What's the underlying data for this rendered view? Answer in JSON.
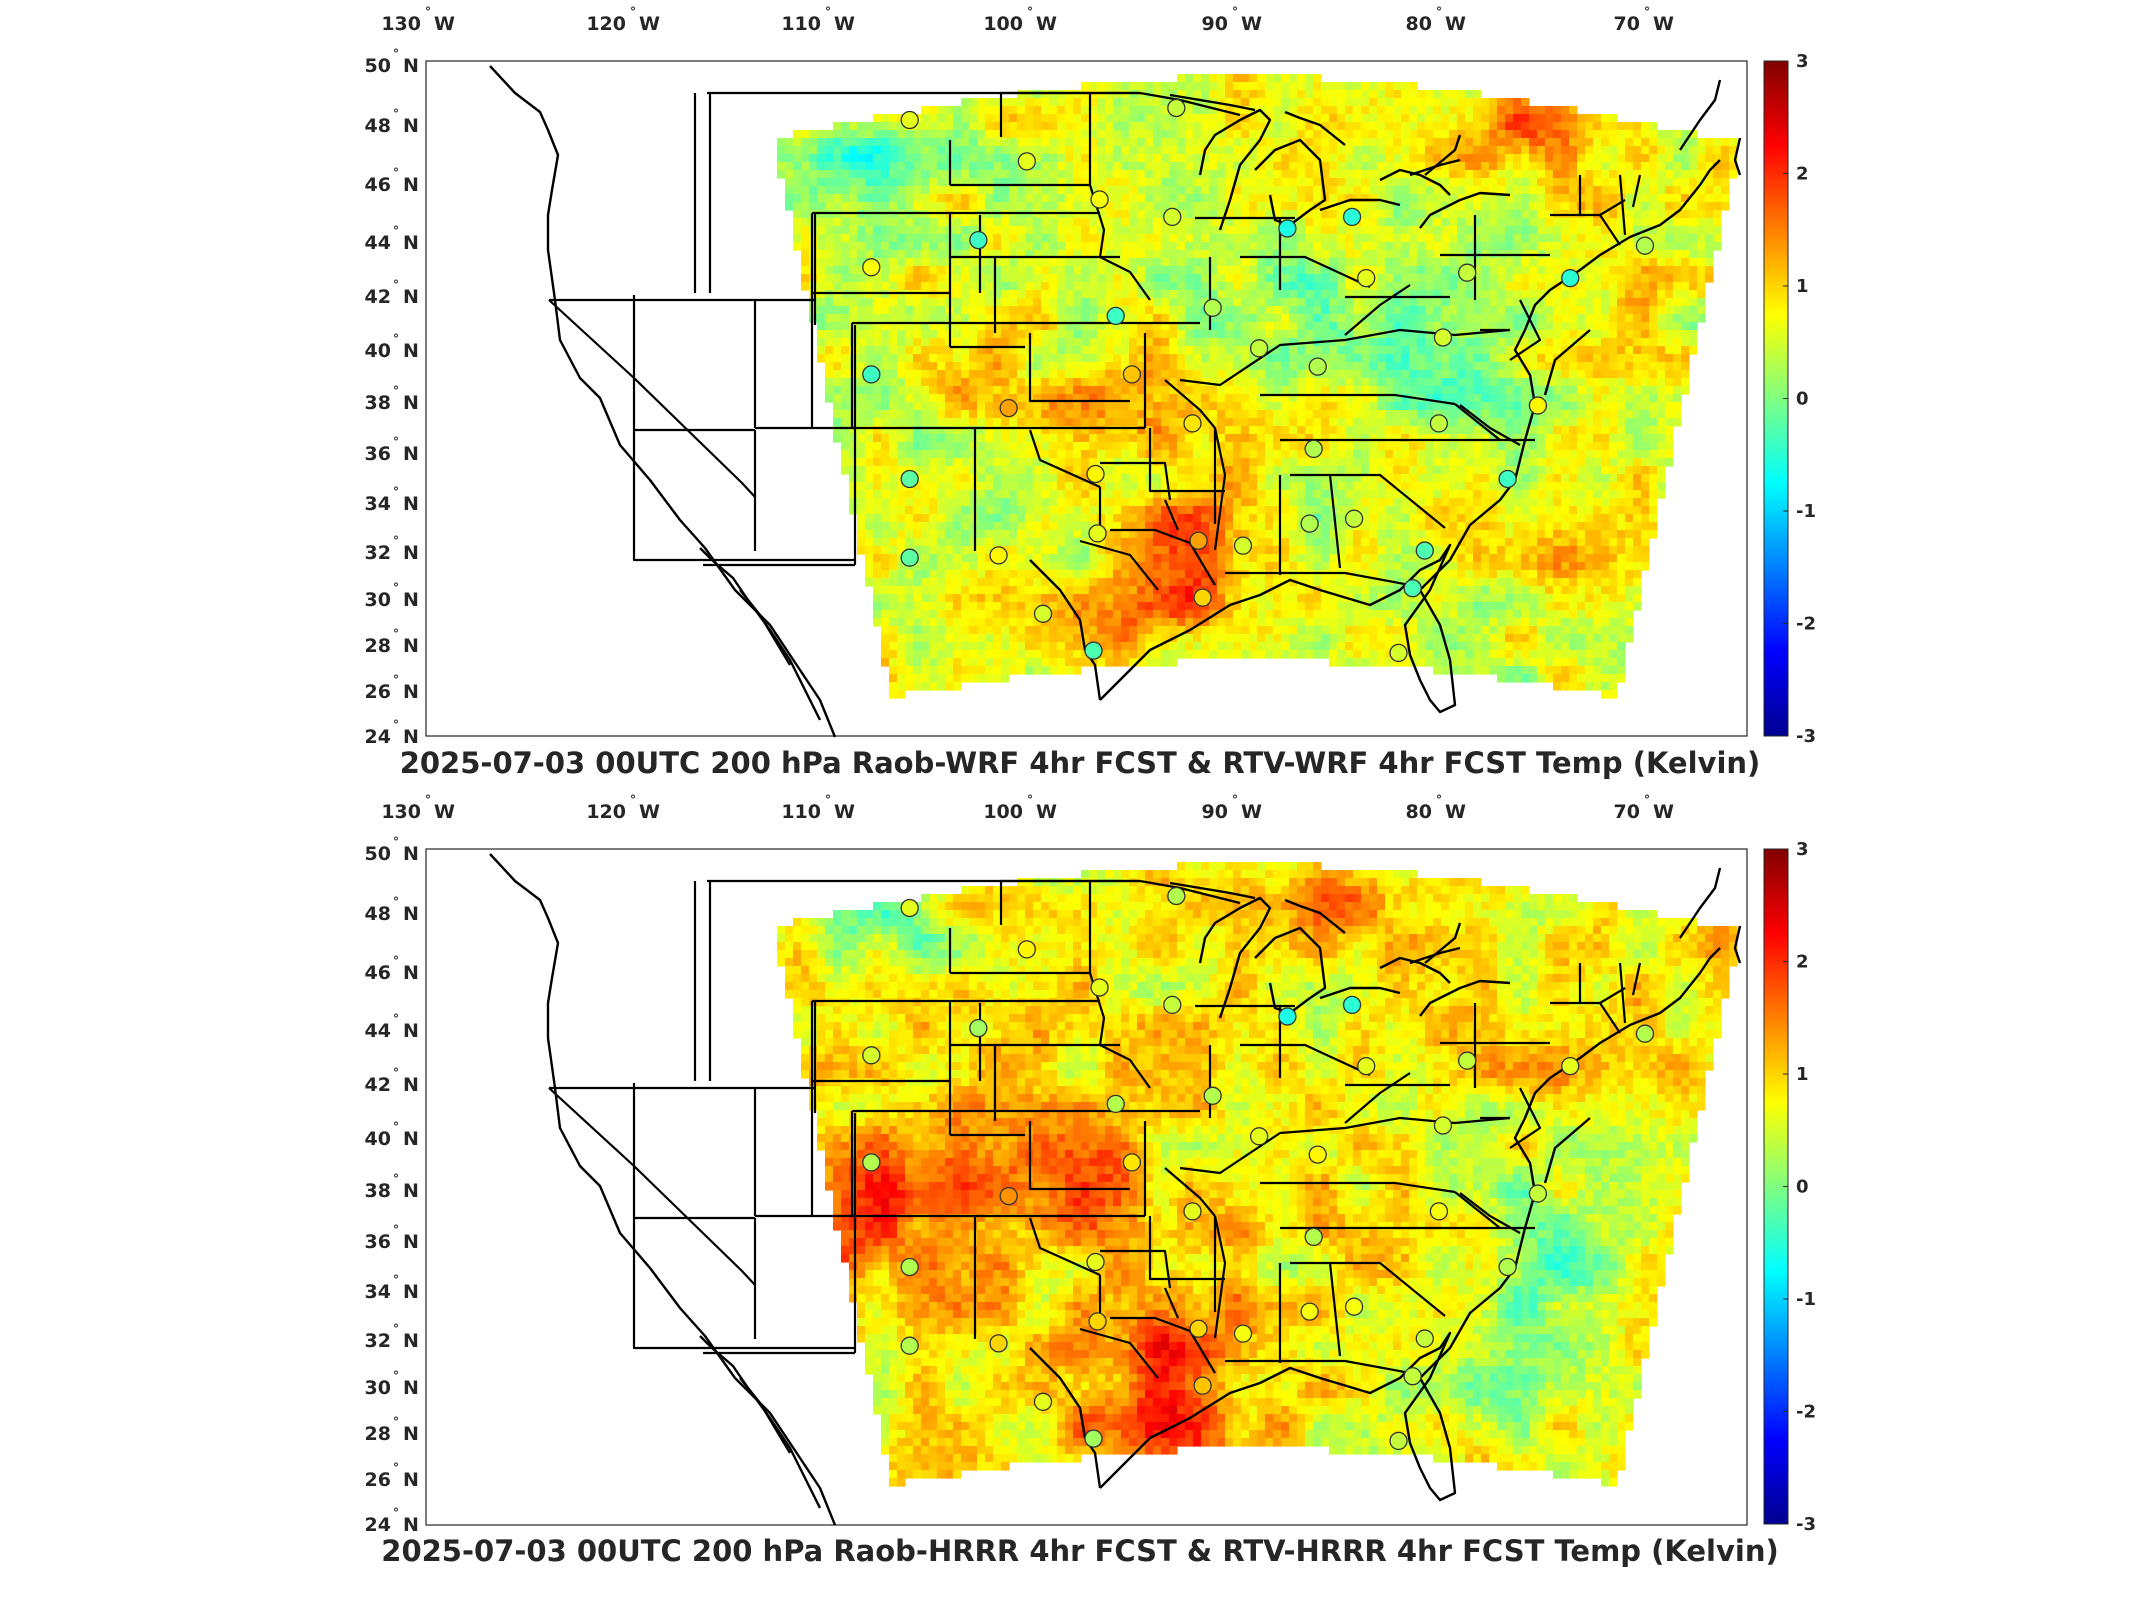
{
  "colormap": [
    "#000090",
    "#0000ff",
    "#0080ff",
    "#00ffff",
    "#80ff80",
    "#ffff00",
    "#ff8000",
    "#ff0000",
    "#800000"
  ],
  "ocean_color": "#ffffff",
  "line_color": "#000000",
  "panels": [
    {
      "title": "2025-07-03 00UTC 200 hPa Raob-WRF 4hr FCST & RTV-WRF 4hr FCST Temp (Kelvin)",
      "field_bias": 0.55,
      "warm_spots": "texas-oklahoma-louisiana-quebec",
      "colorbar": {
        "min": -3,
        "max": 3,
        "ticks": [
          "3",
          "2",
          "1",
          "0",
          "-1",
          "-2",
          "-3"
        ]
      },
      "lon_ticks": [
        {
          "deg": "130",
          "dir": "W"
        },
        {
          "deg": "120",
          "dir": "W"
        },
        {
          "deg": "110",
          "dir": "W"
        },
        {
          "deg": "100",
          "dir": "W"
        },
        {
          "deg": "90",
          "dir": "W"
        },
        {
          "deg": "80",
          "dir": "W"
        },
        {
          "deg": "70",
          "dir": "W"
        }
      ],
      "lat_ticks": [
        {
          "deg": "50",
          "dir": "N"
        },
        {
          "deg": "48",
          "dir": "N"
        },
        {
          "deg": "46",
          "dir": "N"
        },
        {
          "deg": "44",
          "dir": "N"
        },
        {
          "deg": "42",
          "dir": "N"
        },
        {
          "deg": "40",
          "dir": "N"
        },
        {
          "deg": "38",
          "dir": "N"
        },
        {
          "deg": "36",
          "dir": "N"
        },
        {
          "deg": "34",
          "dir": "N"
        },
        {
          "deg": "32",
          "dir": "N"
        },
        {
          "deg": "30",
          "dir": "N"
        },
        {
          "deg": "28",
          "dir": "N"
        },
        {
          "deg": "26",
          "dir": "N"
        },
        {
          "deg": "24",
          "dir": "N"
        }
      ]
    },
    {
      "title": "2025-07-03 00UTC 200 hPa Raob-HRRR 4hr FCST & RTV-HRRR 4hr FCST Temp (Kelvin)",
      "field_bias": 0.75,
      "warm_spots": "southwest-plains-gulf",
      "colorbar": {
        "min": -3,
        "max": 3,
        "ticks": [
          "3",
          "2",
          "1",
          "0",
          "-1",
          "-2",
          "-3"
        ]
      },
      "lon_ticks": [
        {
          "deg": "130",
          "dir": "W"
        },
        {
          "deg": "120",
          "dir": "W"
        },
        {
          "deg": "110",
          "dir": "W"
        },
        {
          "deg": "100",
          "dir": "W"
        },
        {
          "deg": "90",
          "dir": "W"
        },
        {
          "deg": "80",
          "dir": "W"
        },
        {
          "deg": "70",
          "dir": "W"
        }
      ],
      "lat_ticks": [
        {
          "deg": "50",
          "dir": "N"
        },
        {
          "deg": "48",
          "dir": "N"
        },
        {
          "deg": "46",
          "dir": "N"
        },
        {
          "deg": "44",
          "dir": "N"
        },
        {
          "deg": "42",
          "dir": "N"
        },
        {
          "deg": "40",
          "dir": "N"
        },
        {
          "deg": "38",
          "dir": "N"
        },
        {
          "deg": "36",
          "dir": "N"
        },
        {
          "deg": "34",
          "dir": "N"
        },
        {
          "deg": "32",
          "dir": "N"
        },
        {
          "deg": "30",
          "dir": "N"
        },
        {
          "deg": "28",
          "dir": "N"
        },
        {
          "deg": "26",
          "dir": "N"
        },
        {
          "deg": "24",
          "dir": "N"
        }
      ]
    }
  ],
  "raob_stations_wrf": [
    {
      "lon": -106.6,
      "lat": 48.2,
      "v": 0.6
    },
    {
      "lon": -93.4,
      "lat": 48.6,
      "v": 0.4
    },
    {
      "lon": -100.8,
      "lat": 46.8,
      "v": 0.6
    },
    {
      "lon": -97.2,
      "lat": 45.5,
      "v": 0.7
    },
    {
      "lon": -93.6,
      "lat": 44.9,
      "v": 0.5
    },
    {
      "lon": -87.9,
      "lat": 44.5,
      "v": -0.6
    },
    {
      "lon": -84.7,
      "lat": 44.9,
      "v": -0.5
    },
    {
      "lon": -103.2,
      "lat": 44.1,
      "v": -0.4
    },
    {
      "lon": -108.5,
      "lat": 43.1,
      "v": 0.7
    },
    {
      "lon": -96.4,
      "lat": 41.3,
      "v": -0.4
    },
    {
      "lon": -91.6,
      "lat": 41.6,
      "v": 0.3
    },
    {
      "lon": -89.3,
      "lat": 40.1,
      "v": 0.4
    },
    {
      "lon": -84.0,
      "lat": 42.7,
      "v": 0.6
    },
    {
      "lon": -79.0,
      "lat": 42.9,
      "v": 0.4
    },
    {
      "lon": -73.9,
      "lat": 42.7,
      "v": -0.5
    },
    {
      "lon": -70.2,
      "lat": 43.9,
      "v": 0.3
    },
    {
      "lon": -80.2,
      "lat": 40.5,
      "v": 0.5
    },
    {
      "lon": -86.4,
      "lat": 39.4,
      "v": 0.3
    },
    {
      "lon": -108.5,
      "lat": 39.1,
      "v": -0.4
    },
    {
      "lon": -101.7,
      "lat": 37.8,
      "v": 1.3
    },
    {
      "lon": -95.6,
      "lat": 39.1,
      "v": 1.1
    },
    {
      "lon": -92.6,
      "lat": 37.2,
      "v": 0.9
    },
    {
      "lon": -86.6,
      "lat": 36.2,
      "v": 0.3
    },
    {
      "lon": -80.4,
      "lat": 37.2,
      "v": 0.4
    },
    {
      "lon": -75.5,
      "lat": 37.9,
      "v": 0.8
    },
    {
      "lon": -77.0,
      "lat": 35.0,
      "v": -0.4
    },
    {
      "lon": -106.6,
      "lat": 35.0,
      "v": -0.2
    },
    {
      "lon": -97.4,
      "lat": 35.2,
      "v": 0.8
    },
    {
      "lon": -92.3,
      "lat": 32.5,
      "v": 1.3
    },
    {
      "lon": -90.1,
      "lat": 32.3,
      "v": 0.5
    },
    {
      "lon": -86.8,
      "lat": 33.2,
      "v": 0.3
    },
    {
      "lon": -84.6,
      "lat": 33.4,
      "v": 0.4
    },
    {
      "lon": -81.1,
      "lat": 32.1,
      "v": -0.3
    },
    {
      "lon": -106.6,
      "lat": 31.8,
      "v": -0.2
    },
    {
      "lon": -102.2,
      "lat": 31.9,
      "v": 0.8
    },
    {
      "lon": -97.3,
      "lat": 32.8,
      "v": 0.6
    },
    {
      "lon": -92.1,
      "lat": 30.1,
      "v": 1.0
    },
    {
      "lon": -81.7,
      "lat": 30.5,
      "v": -0.3
    },
    {
      "lon": -100.0,
      "lat": 29.4,
      "v": 0.5
    },
    {
      "lon": -97.5,
      "lat": 27.8,
      "v": -0.3
    },
    {
      "lon": -82.4,
      "lat": 27.7,
      "v": 0.5
    }
  ],
  "raob_stations_hrrr": [
    {
      "lon": -106.6,
      "lat": 48.2,
      "v": 0.6
    },
    {
      "lon": -93.4,
      "lat": 48.6,
      "v": 0.3
    },
    {
      "lon": -100.8,
      "lat": 46.8,
      "v": 0.8
    },
    {
      "lon": -97.2,
      "lat": 45.5,
      "v": 0.6
    },
    {
      "lon": -93.6,
      "lat": 44.9,
      "v": 0.4
    },
    {
      "lon": -87.9,
      "lat": 44.5,
      "v": -0.6
    },
    {
      "lon": -84.7,
      "lat": 44.9,
      "v": -0.5
    },
    {
      "lon": -103.2,
      "lat": 44.1,
      "v": 0.2
    },
    {
      "lon": -108.5,
      "lat": 43.1,
      "v": 0.5
    },
    {
      "lon": -96.4,
      "lat": 41.3,
      "v": 0.3
    },
    {
      "lon": -91.6,
      "lat": 41.6,
      "v": 0.3
    },
    {
      "lon": -89.3,
      "lat": 40.1,
      "v": 0.6
    },
    {
      "lon": -84.0,
      "lat": 42.7,
      "v": 0.6
    },
    {
      "lon": -79.0,
      "lat": 42.9,
      "v": 0.4
    },
    {
      "lon": -73.9,
      "lat": 42.7,
      "v": 0.6
    },
    {
      "lon": -70.2,
      "lat": 43.9,
      "v": 0.3
    },
    {
      "lon": -80.2,
      "lat": 40.5,
      "v": 0.5
    },
    {
      "lon": -86.4,
      "lat": 39.4,
      "v": 0.8
    },
    {
      "lon": -108.5,
      "lat": 39.1,
      "v": 0.3
    },
    {
      "lon": -101.7,
      "lat": 37.8,
      "v": 1.4
    },
    {
      "lon": -95.6,
      "lat": 39.1,
      "v": 0.9
    },
    {
      "lon": -92.6,
      "lat": 37.2,
      "v": 0.6
    },
    {
      "lon": -86.6,
      "lat": 36.2,
      "v": 0.3
    },
    {
      "lon": -80.4,
      "lat": 37.2,
      "v": 0.7
    },
    {
      "lon": -75.5,
      "lat": 37.9,
      "v": 0.4
    },
    {
      "lon": -77.0,
      "lat": 35.0,
      "v": 0.3
    },
    {
      "lon": -106.6,
      "lat": 35.0,
      "v": 0.3
    },
    {
      "lon": -97.4,
      "lat": 35.2,
      "v": 0.6
    },
    {
      "lon": -92.3,
      "lat": 32.5,
      "v": 1.0
    },
    {
      "lon": -90.1,
      "lat": 32.3,
      "v": 0.7
    },
    {
      "lon": -86.8,
      "lat": 33.2,
      "v": 0.7
    },
    {
      "lon": -84.6,
      "lat": 33.4,
      "v": 0.7
    },
    {
      "lon": -81.1,
      "lat": 32.1,
      "v": 0.4
    },
    {
      "lon": -106.6,
      "lat": 31.8,
      "v": 0.3
    },
    {
      "lon": -102.2,
      "lat": 31.9,
      "v": 1.0
    },
    {
      "lon": -97.3,
      "lat": 32.8,
      "v": 1.0
    },
    {
      "lon": -92.1,
      "lat": 30.1,
      "v": 1.1
    },
    {
      "lon": -81.7,
      "lat": 30.5,
      "v": 0.4
    },
    {
      "lon": -100.0,
      "lat": 29.4,
      "v": 0.6
    },
    {
      "lon": -97.5,
      "lat": 27.8,
      "v": 0.2
    },
    {
      "lon": -82.4,
      "lat": 27.7,
      "v": 0.4
    }
  ]
}
